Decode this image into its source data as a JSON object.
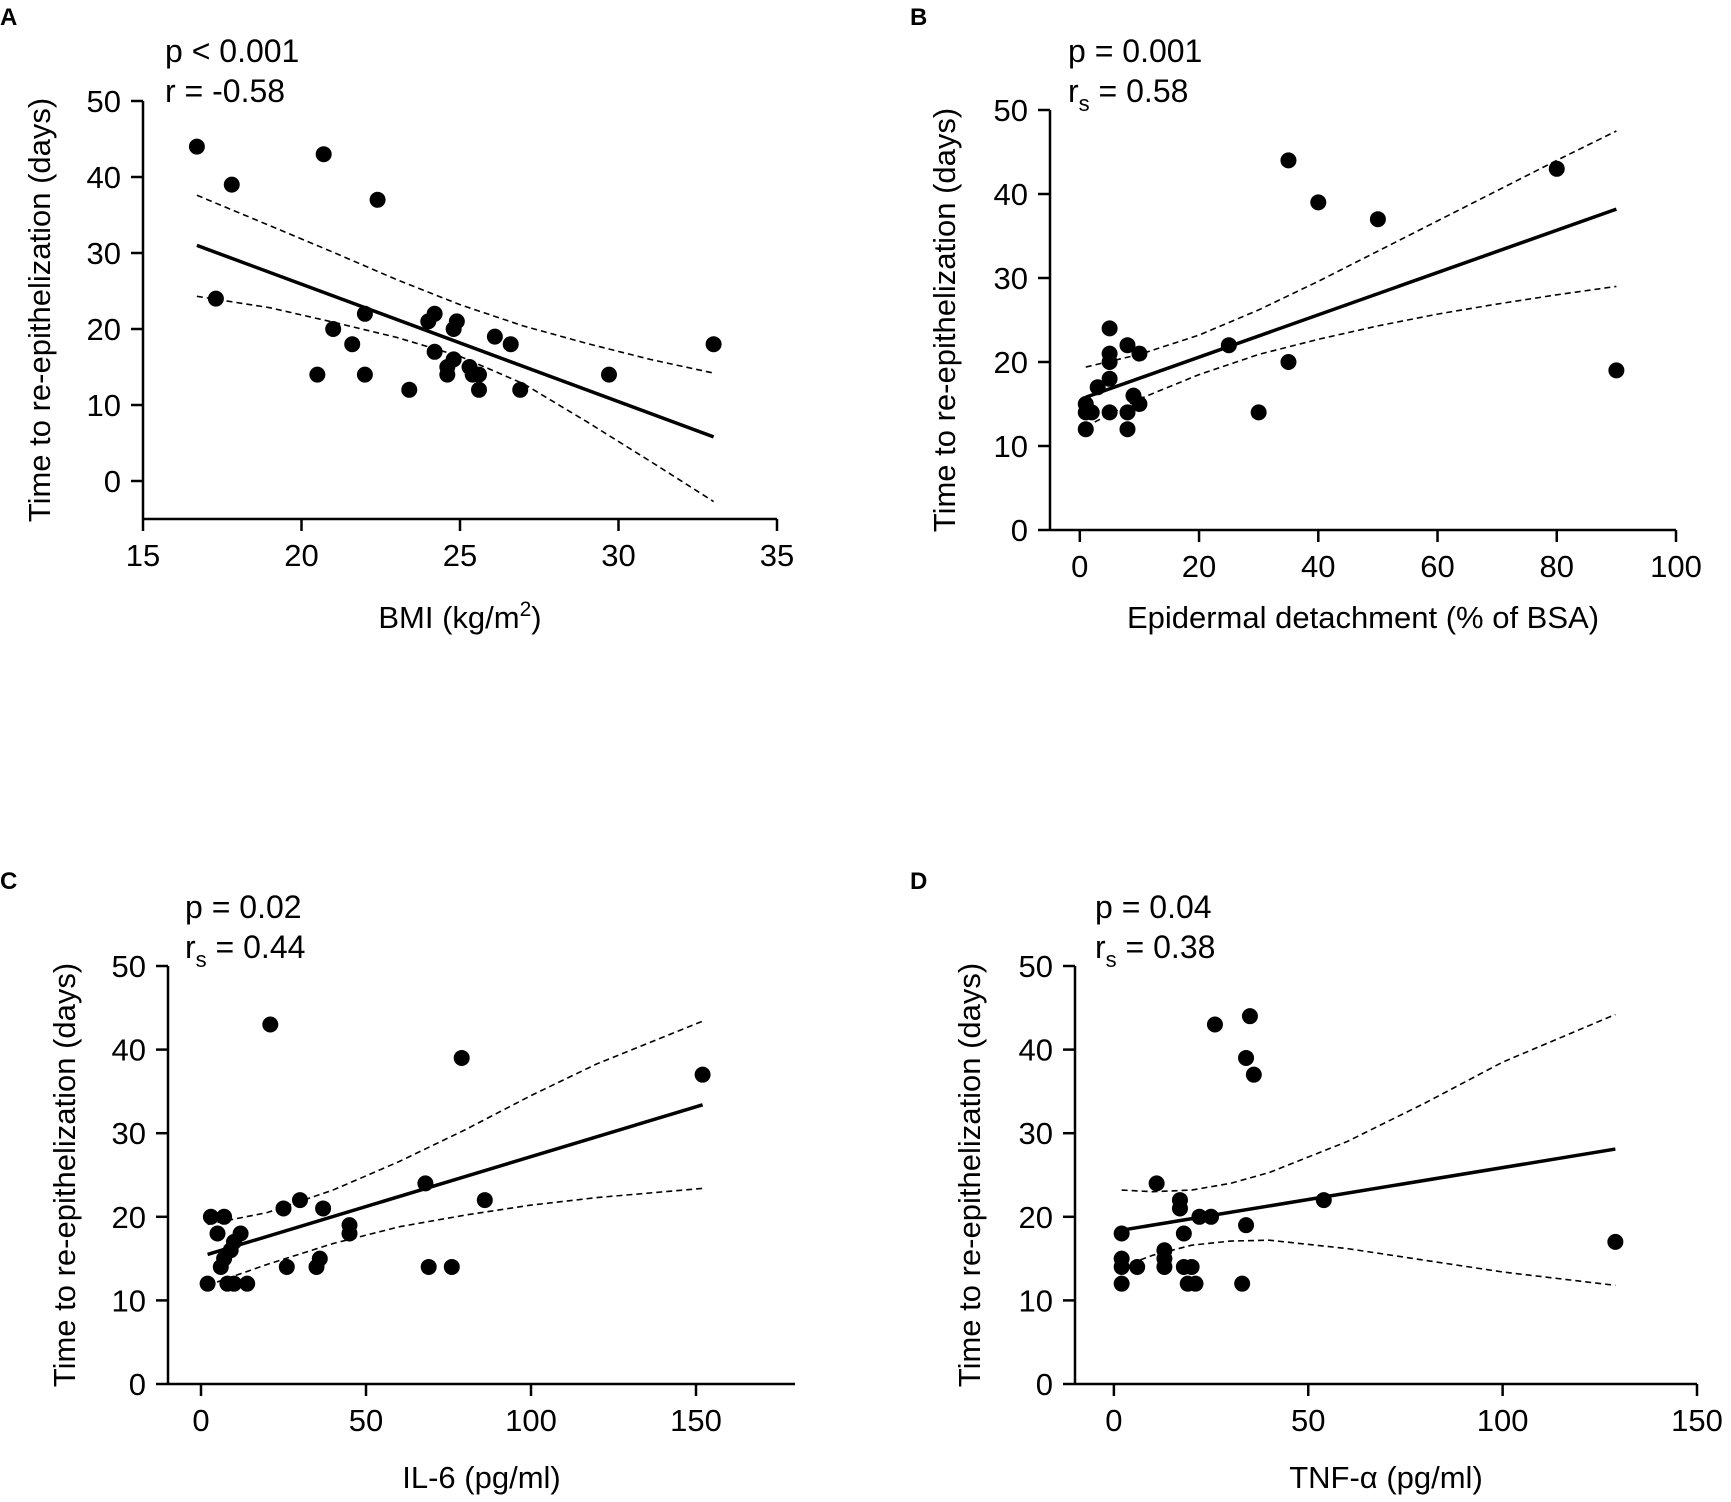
{
  "chart_data": [
    {
      "panel": "A",
      "type": "scatter",
      "stats": [
        {
          "prefix": "p < 0.001",
          "sub": "",
          "suffix": ""
        },
        {
          "prefix": "r = -0.58",
          "sub": "",
          "suffix": ""
        }
      ],
      "xlabel": {
        "prefix": "BMI (kg/m",
        "sup": "2",
        "suffix": ")"
      },
      "ylabel": "Time to re-epithelization (days)",
      "xlim": [
        15,
        35
      ],
      "ylim": [
        -5,
        50
      ],
      "xticks": [
        15,
        20,
        25,
        30,
        35
      ],
      "yticks": [
        0,
        10,
        20,
        30,
        40,
        50
      ],
      "points": [
        [
          16.7,
          44
        ],
        [
          17.3,
          24
        ],
        [
          17.8,
          39
        ],
        [
          20.5,
          14
        ],
        [
          20.7,
          43
        ],
        [
          21,
          20
        ],
        [
          21.6,
          18
        ],
        [
          22,
          22
        ],
        [
          22,
          14
        ],
        [
          22.4,
          37
        ],
        [
          23.4,
          12
        ],
        [
          24,
          21
        ],
        [
          24.2,
          22
        ],
        [
          24.2,
          17
        ],
        [
          24.6,
          14
        ],
        [
          24.6,
          15
        ],
        [
          24.8,
          16
        ],
        [
          24.8,
          20
        ],
        [
          24.9,
          21
        ],
        [
          25.3,
          15
        ],
        [
          25.4,
          14
        ],
        [
          25.6,
          12
        ],
        [
          25.6,
          14
        ],
        [
          26.1,
          19
        ],
        [
          26.6,
          18
        ],
        [
          26.9,
          12
        ],
        [
          29.7,
          14
        ],
        [
          33,
          18
        ]
      ],
      "fit": {
        "x": [
          16.7,
          33
        ],
        "y": [
          31,
          5.8
        ]
      },
      "ci_upper": {
        "x": [
          16.7,
          19,
          21,
          23,
          25,
          27,
          29,
          31,
          33
        ],
        "y": [
          37.6,
          33.6,
          30.1,
          26.5,
          23.2,
          20.4,
          18.1,
          16.0,
          14.2
        ]
      },
      "ci_lower": {
        "x": [
          16.7,
          19,
          21,
          23,
          25,
          27,
          29,
          31,
          33
        ],
        "y": [
          24.3,
          22.8,
          20.9,
          18.9,
          16.4,
          12.8,
          7.8,
          2.6,
          -2.7
        ]
      }
    },
    {
      "panel": "B",
      "type": "scatter",
      "stats": [
        {
          "prefix": "p = 0.001",
          "sub": "",
          "suffix": ""
        },
        {
          "prefix": "r",
          "sub": "s",
          "suffix": " = 0.58"
        }
      ],
      "xlabel": {
        "prefix": "Epidermal detachment (% of  BSA)",
        "sup": "",
        "suffix": ""
      },
      "ylabel": "Time to re-epithelization (days)",
      "xlim": [
        -5,
        100
      ],
      "ylim": [
        0,
        50
      ],
      "xticks": [
        0,
        20,
        40,
        60,
        80,
        100
      ],
      "yticks": [
        0,
        10,
        20,
        30,
        40,
        50
      ],
      "points": [
        [
          1,
          12
        ],
        [
          1,
          14
        ],
        [
          1,
          15
        ],
        [
          2,
          14
        ],
        [
          3,
          17
        ],
        [
          5,
          24
        ],
        [
          5,
          21
        ],
        [
          5,
          20
        ],
        [
          5,
          18
        ],
        [
          5,
          14
        ],
        [
          8,
          22
        ],
        [
          8,
          14
        ],
        [
          8,
          12
        ],
        [
          9,
          16
        ],
        [
          10,
          15
        ],
        [
          10,
          21
        ],
        [
          25,
          22
        ],
        [
          30,
          14
        ],
        [
          35,
          44
        ],
        [
          35,
          20
        ],
        [
          40,
          39
        ],
        [
          50,
          37
        ],
        [
          80,
          43
        ],
        [
          90,
          19
        ]
      ],
      "fit": {
        "x": [
          1,
          90
        ],
        "y": [
          15.8,
          38.2
        ]
      },
      "ci_upper": {
        "x": [
          1,
          10,
          20,
          30,
          40,
          50,
          60,
          70,
          80,
          90
        ],
        "y": [
          19.4,
          20.9,
          23.2,
          26.2,
          29.6,
          33.2,
          36.8,
          40.4,
          44.0,
          47.5
        ]
      },
      "ci_lower": {
        "x": [
          1,
          10,
          20,
          30,
          40,
          50,
          60,
          70,
          80,
          90
        ],
        "y": [
          12.3,
          15.6,
          18.5,
          20.9,
          22.7,
          24.3,
          25.7,
          26.9,
          28.0,
          29.0
        ]
      }
    },
    {
      "panel": "C",
      "type": "scatter",
      "stats": [
        {
          "prefix": "p = 0.02",
          "sub": "",
          "suffix": ""
        },
        {
          "prefix": "r",
          "sub": "s",
          "suffix": " = 0.44"
        }
      ],
      "xlabel": {
        "prefix": "IL-6 (pg/ml)",
        "sup": "",
        "suffix": ""
      },
      "ylabel": "Time to re-epithelization (days)",
      "xlim": [
        -10,
        180
      ],
      "ylim": [
        0,
        50
      ],
      "xticks": [
        0,
        50,
        100,
        150
      ],
      "yticks": [
        0,
        10,
        20,
        30,
        40,
        50
      ],
      "points": [
        [
          2,
          12
        ],
        [
          3,
          20
        ],
        [
          5,
          18
        ],
        [
          6,
          14
        ],
        [
          7,
          20
        ],
        [
          7,
          15
        ],
        [
          8,
          12
        ],
        [
          9,
          16
        ],
        [
          10,
          17
        ],
        [
          10,
          12
        ],
        [
          12,
          18
        ],
        [
          14,
          12
        ],
        [
          21,
          43
        ],
        [
          25,
          21
        ],
        [
          26,
          14
        ],
        [
          30,
          22
        ],
        [
          35,
          14
        ],
        [
          36,
          15
        ],
        [
          37,
          21
        ],
        [
          45,
          19
        ],
        [
          45,
          18
        ],
        [
          68,
          24
        ],
        [
          69,
          14
        ],
        [
          76,
          14
        ],
        [
          79,
          39
        ],
        [
          86,
          22
        ],
        [
          152,
          37
        ]
      ],
      "fit": {
        "x": [
          2,
          152
        ],
        "y": [
          15.5,
          33.4
        ]
      },
      "ci_upper": {
        "x": [
          2,
          20,
          40,
          60,
          80,
          100,
          120,
          152
        ],
        "y": [
          19.1,
          20.5,
          23.2,
          26.6,
          30.4,
          34.5,
          38.3,
          43.4
        ]
      },
      "ci_lower": {
        "x": [
          2,
          20,
          40,
          60,
          80,
          100,
          120,
          152
        ],
        "y": [
          11.8,
          14.3,
          16.8,
          18.8,
          20.2,
          21.4,
          22.3,
          23.4
        ]
      }
    },
    {
      "panel": "D",
      "type": "scatter",
      "stats": [
        {
          "prefix": "p = 0.04",
          "sub": "",
          "suffix": ""
        },
        {
          "prefix": "r",
          "sub": "s",
          "suffix": " = 0.38"
        }
      ],
      "xlabel": {
        "prefix": "TNF-α (pg/ml)",
        "sup": "",
        "suffix": ""
      },
      "ylabel": "Time to re-epithelization (days)",
      "xlim": [
        -10,
        150
      ],
      "ylim": [
        0,
        50
      ],
      "xticks": [
        0,
        50,
        100,
        150
      ],
      "yticks": [
        0,
        10,
        20,
        30,
        40,
        50
      ],
      "points": [
        [
          2,
          12
        ],
        [
          2,
          14
        ],
        [
          2,
          15
        ],
        [
          2,
          18
        ],
        [
          6,
          14
        ],
        [
          11,
          24
        ],
        [
          13,
          16
        ],
        [
          13,
          15
        ],
        [
          13,
          14
        ],
        [
          17,
          22
        ],
        [
          17,
          21
        ],
        [
          18,
          18
        ],
        [
          18,
          14
        ],
        [
          19,
          12
        ],
        [
          20,
          14
        ],
        [
          21,
          12
        ],
        [
          22,
          20
        ],
        [
          25,
          20
        ],
        [
          26,
          43
        ],
        [
          33,
          12
        ],
        [
          34,
          19
        ],
        [
          34,
          39
        ],
        [
          35,
          44
        ],
        [
          36,
          37
        ],
        [
          54,
          22
        ],
        [
          129,
          17
        ]
      ],
      "fit": {
        "x": [
          2,
          129
        ],
        "y": [
          18.4,
          28.1
        ]
      },
      "ci_upper": {
        "x": [
          2,
          10,
          20,
          30,
          40,
          60,
          80,
          100,
          129
        ],
        "y": [
          23.2,
          23.0,
          23.2,
          24.0,
          25.3,
          29.0,
          33.6,
          38.5,
          44.2
        ]
      },
      "ci_lower": {
        "x": [
          2,
          10,
          20,
          30,
          40,
          60,
          80,
          100,
          129
        ],
        "y": [
          14.0,
          15.4,
          16.6,
          17.1,
          17.2,
          16.2,
          14.8,
          13.4,
          11.8
        ]
      }
    }
  ]
}
